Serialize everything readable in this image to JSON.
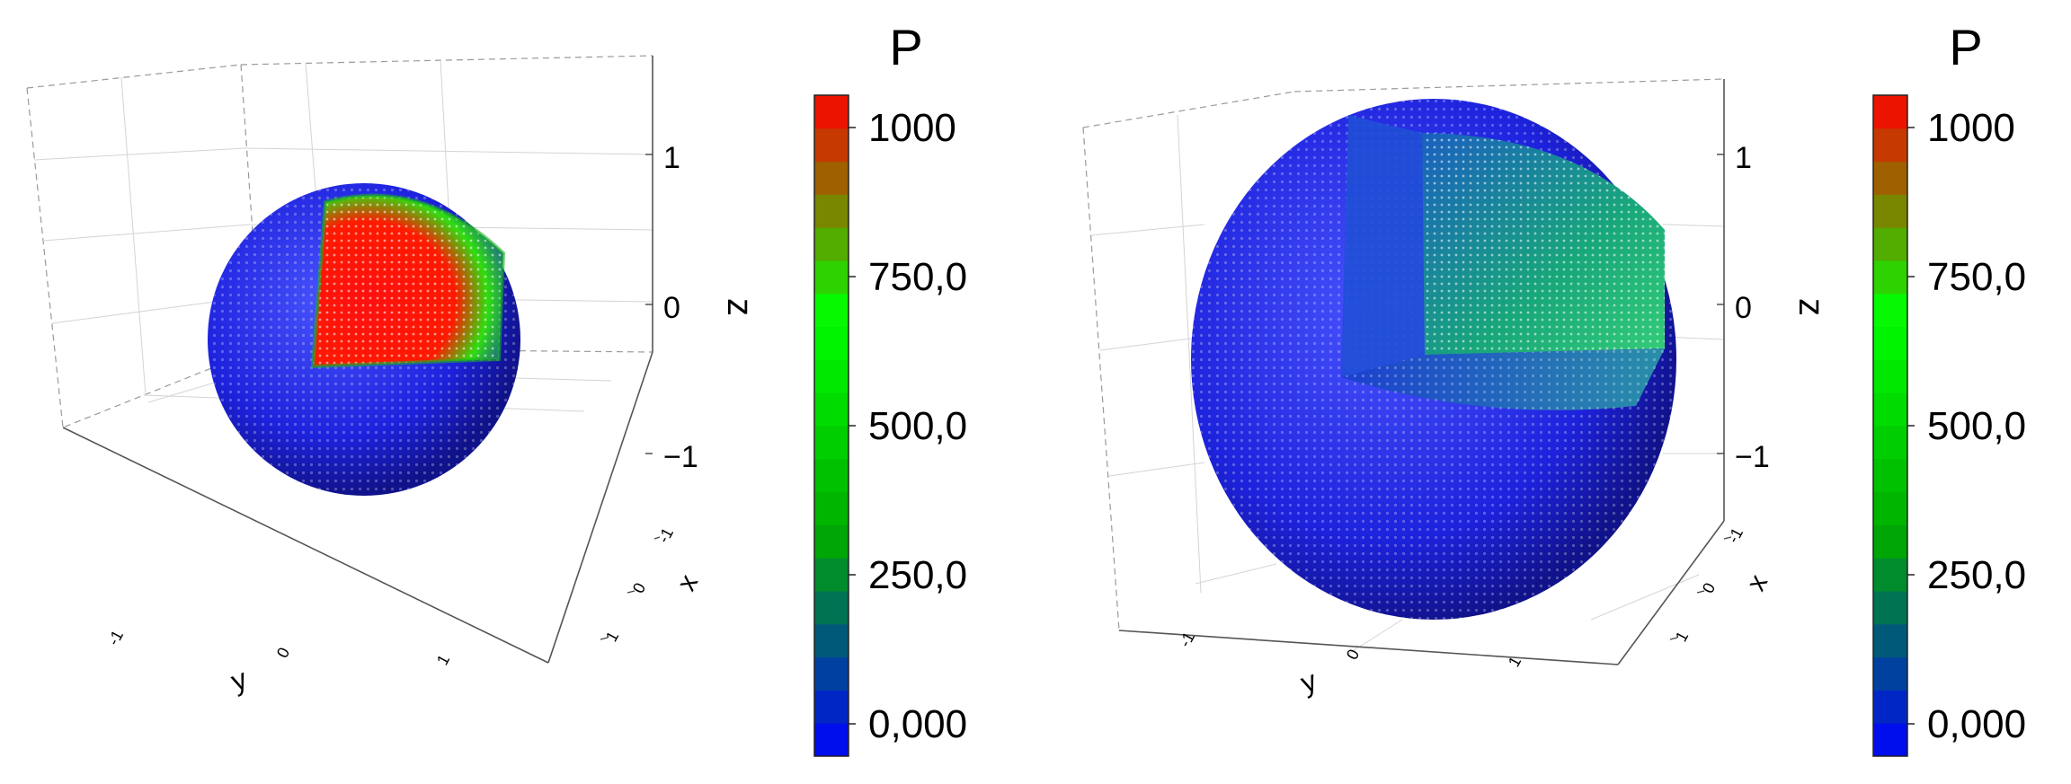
{
  "chart_data": [
    {
      "type": "scatter",
      "projection": "3d",
      "title": "",
      "xlabel": "x",
      "ylabel": "y",
      "zlabel": "z",
      "x_ticks": [
        "-1",
        "0",
        "1"
      ],
      "y_ticks": [
        "-1",
        "0",
        "1"
      ],
      "z_ticks": [
        "1",
        "0",
        "−1"
      ],
      "xlim": [
        -1.5,
        1.5
      ],
      "ylim": [
        -1.5,
        1.5
      ],
      "zlim": [
        -1.5,
        1.5
      ],
      "grid": true,
      "sphere_radius": 1.0,
      "cutaway_octant": "front-top-right",
      "core_value": 1000,
      "surface_value": 0,
      "colorbar": {
        "title": "P",
        "ticks": [
          "1000",
          "750,0",
          "500,0",
          "250,0",
          "0,000"
        ],
        "tick_values": [
          1000,
          750,
          500,
          250,
          0
        ],
        "range": [
          0,
          1000
        ],
        "levels": 20,
        "colors": [
          "#0000ff",
          "#00aa00",
          "#00ff00",
          "#ff0000"
        ]
      }
    },
    {
      "type": "scatter",
      "projection": "3d",
      "title": "",
      "xlabel": "x",
      "ylabel": "y",
      "zlabel": "z",
      "x_ticks": [
        "-1",
        "0",
        "1"
      ],
      "y_ticks": [
        "-1",
        "0",
        "1"
      ],
      "z_ticks": [
        "1",
        "0",
        "−1"
      ],
      "xlim": [
        -1.5,
        1.5
      ],
      "ylim": [
        -1.5,
        1.5
      ],
      "zlim": [
        -1.5,
        1.5
      ],
      "grid": true,
      "sphere_radius": 1.5,
      "cutaway_octant": "front-top-right",
      "core_value": 400,
      "surface_value": 0,
      "colorbar": {
        "title": "P",
        "ticks": [
          "1000",
          "750,0",
          "500,0",
          "250,0",
          "0,000"
        ],
        "tick_values": [
          1000,
          750,
          500,
          250,
          0
        ],
        "range": [
          0,
          1000
        ],
        "levels": 20,
        "colors": [
          "#0000ff",
          "#00aa00",
          "#00ff00",
          "#ff0000"
        ]
      }
    }
  ]
}
